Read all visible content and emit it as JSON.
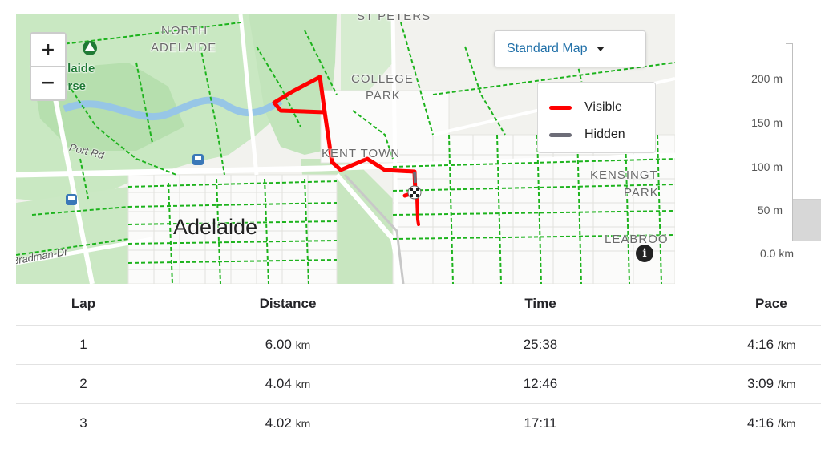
{
  "map": {
    "zoom_in_label": "+",
    "zoom_out_label": "−",
    "map_type_label": "Standard Map",
    "legend": [
      {
        "label": "Visible",
        "color": "#ff0000"
      },
      {
        "label": "Hidden",
        "color": "#6d6d78"
      }
    ],
    "labels": {
      "north_adelaide": "NORTH",
      "north_adelaide_2": "ADELAIDE",
      "st_peters": "ST PETERS",
      "golf_1": "th Adelaide",
      "golf_2": "lf Course",
      "college_park_1": "COLLEGE",
      "college_park_2": "PARK",
      "kent_town": "KENT TOWN",
      "port_rd": "Port Rd",
      "kensington_1": "KENSINGT",
      "kensington_2": "PARK",
      "adelaide": "Adelaide",
      "bradman_dr": "Bradman-Dr",
      "leabrook": "LEABROO"
    },
    "info_icon": "i"
  },
  "elevation": {
    "ticks": [
      "200 m",
      "150 m",
      "100 m",
      "50 m"
    ],
    "x_start": "0.0 km"
  },
  "laps": {
    "headers": {
      "lap": "Lap",
      "distance": "Distance",
      "time": "Time",
      "pace": "Pace"
    },
    "rows": [
      {
        "lap": "1",
        "distance": "6.00",
        "distance_unit": "km",
        "time": "25:38",
        "pace": "4:16",
        "pace_unit": "/km"
      },
      {
        "lap": "2",
        "distance": "4.04",
        "distance_unit": "km",
        "time": "12:46",
        "pace": "3:09",
        "pace_unit": "/km"
      },
      {
        "lap": "3",
        "distance": "4.02",
        "distance_unit": "km",
        "time": "17:11",
        "pace": "4:16",
        "pace_unit": "/km"
      }
    ]
  }
}
